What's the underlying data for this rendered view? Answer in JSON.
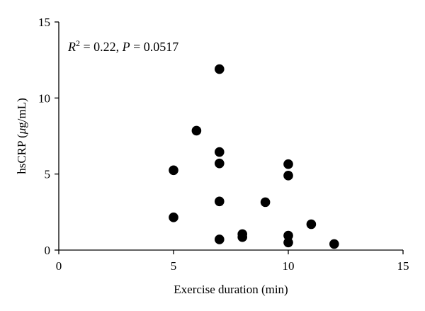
{
  "chart_data": {
    "type": "scatter",
    "title": "",
    "xlabel": "Exercise duration (min)",
    "ylabel": "hsCRP (μg/mL)",
    "xlim": [
      0,
      15
    ],
    "ylim": [
      0,
      15
    ],
    "xticks": [
      0,
      5,
      10,
      15
    ],
    "yticks": [
      0,
      5,
      10,
      15
    ],
    "grid": false,
    "legend": "none",
    "annotation": {
      "r_label": "R",
      "r_exp": "2",
      "r_value": " = 0.22, ",
      "p_label": "P",
      "p_value": " = 0.0517"
    },
    "marker_color": "#000000",
    "points": [
      {
        "x": 5,
        "y": 5.25
      },
      {
        "x": 5,
        "y": 2.15
      },
      {
        "x": 6,
        "y": 7.85
      },
      {
        "x": 7,
        "y": 11.9
      },
      {
        "x": 7,
        "y": 6.45
      },
      {
        "x": 7,
        "y": 5.7
      },
      {
        "x": 7,
        "y": 3.2
      },
      {
        "x": 7,
        "y": 0.7
      },
      {
        "x": 8,
        "y": 1.05
      },
      {
        "x": 8,
        "y": 0.85
      },
      {
        "x": 9,
        "y": 3.15
      },
      {
        "x": 10,
        "y": 5.65
      },
      {
        "x": 10,
        "y": 4.9
      },
      {
        "x": 10,
        "y": 0.95
      },
      {
        "x": 10,
        "y": 0.5
      },
      {
        "x": 11,
        "y": 1.7
      },
      {
        "x": 12,
        "y": 0.4
      }
    ]
  }
}
